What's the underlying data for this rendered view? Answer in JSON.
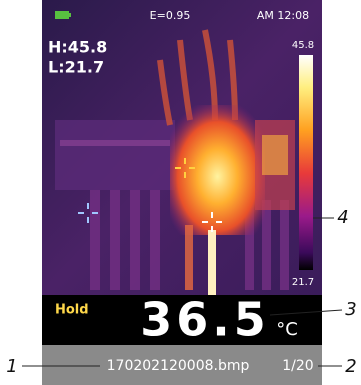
{
  "status": {
    "emissivity": "E=0.95",
    "time": "AM 12:08"
  },
  "readout": {
    "high": "H:45.8",
    "low": "L:21.7",
    "scale_max": "45.8",
    "scale_min": "21.7",
    "mode": "Hold",
    "temperature": "36.5",
    "unit": "°C"
  },
  "file": {
    "name": "170202120008.bmp",
    "index": "1/20"
  },
  "callouts": [
    "1",
    "2",
    "3",
    "4"
  ]
}
